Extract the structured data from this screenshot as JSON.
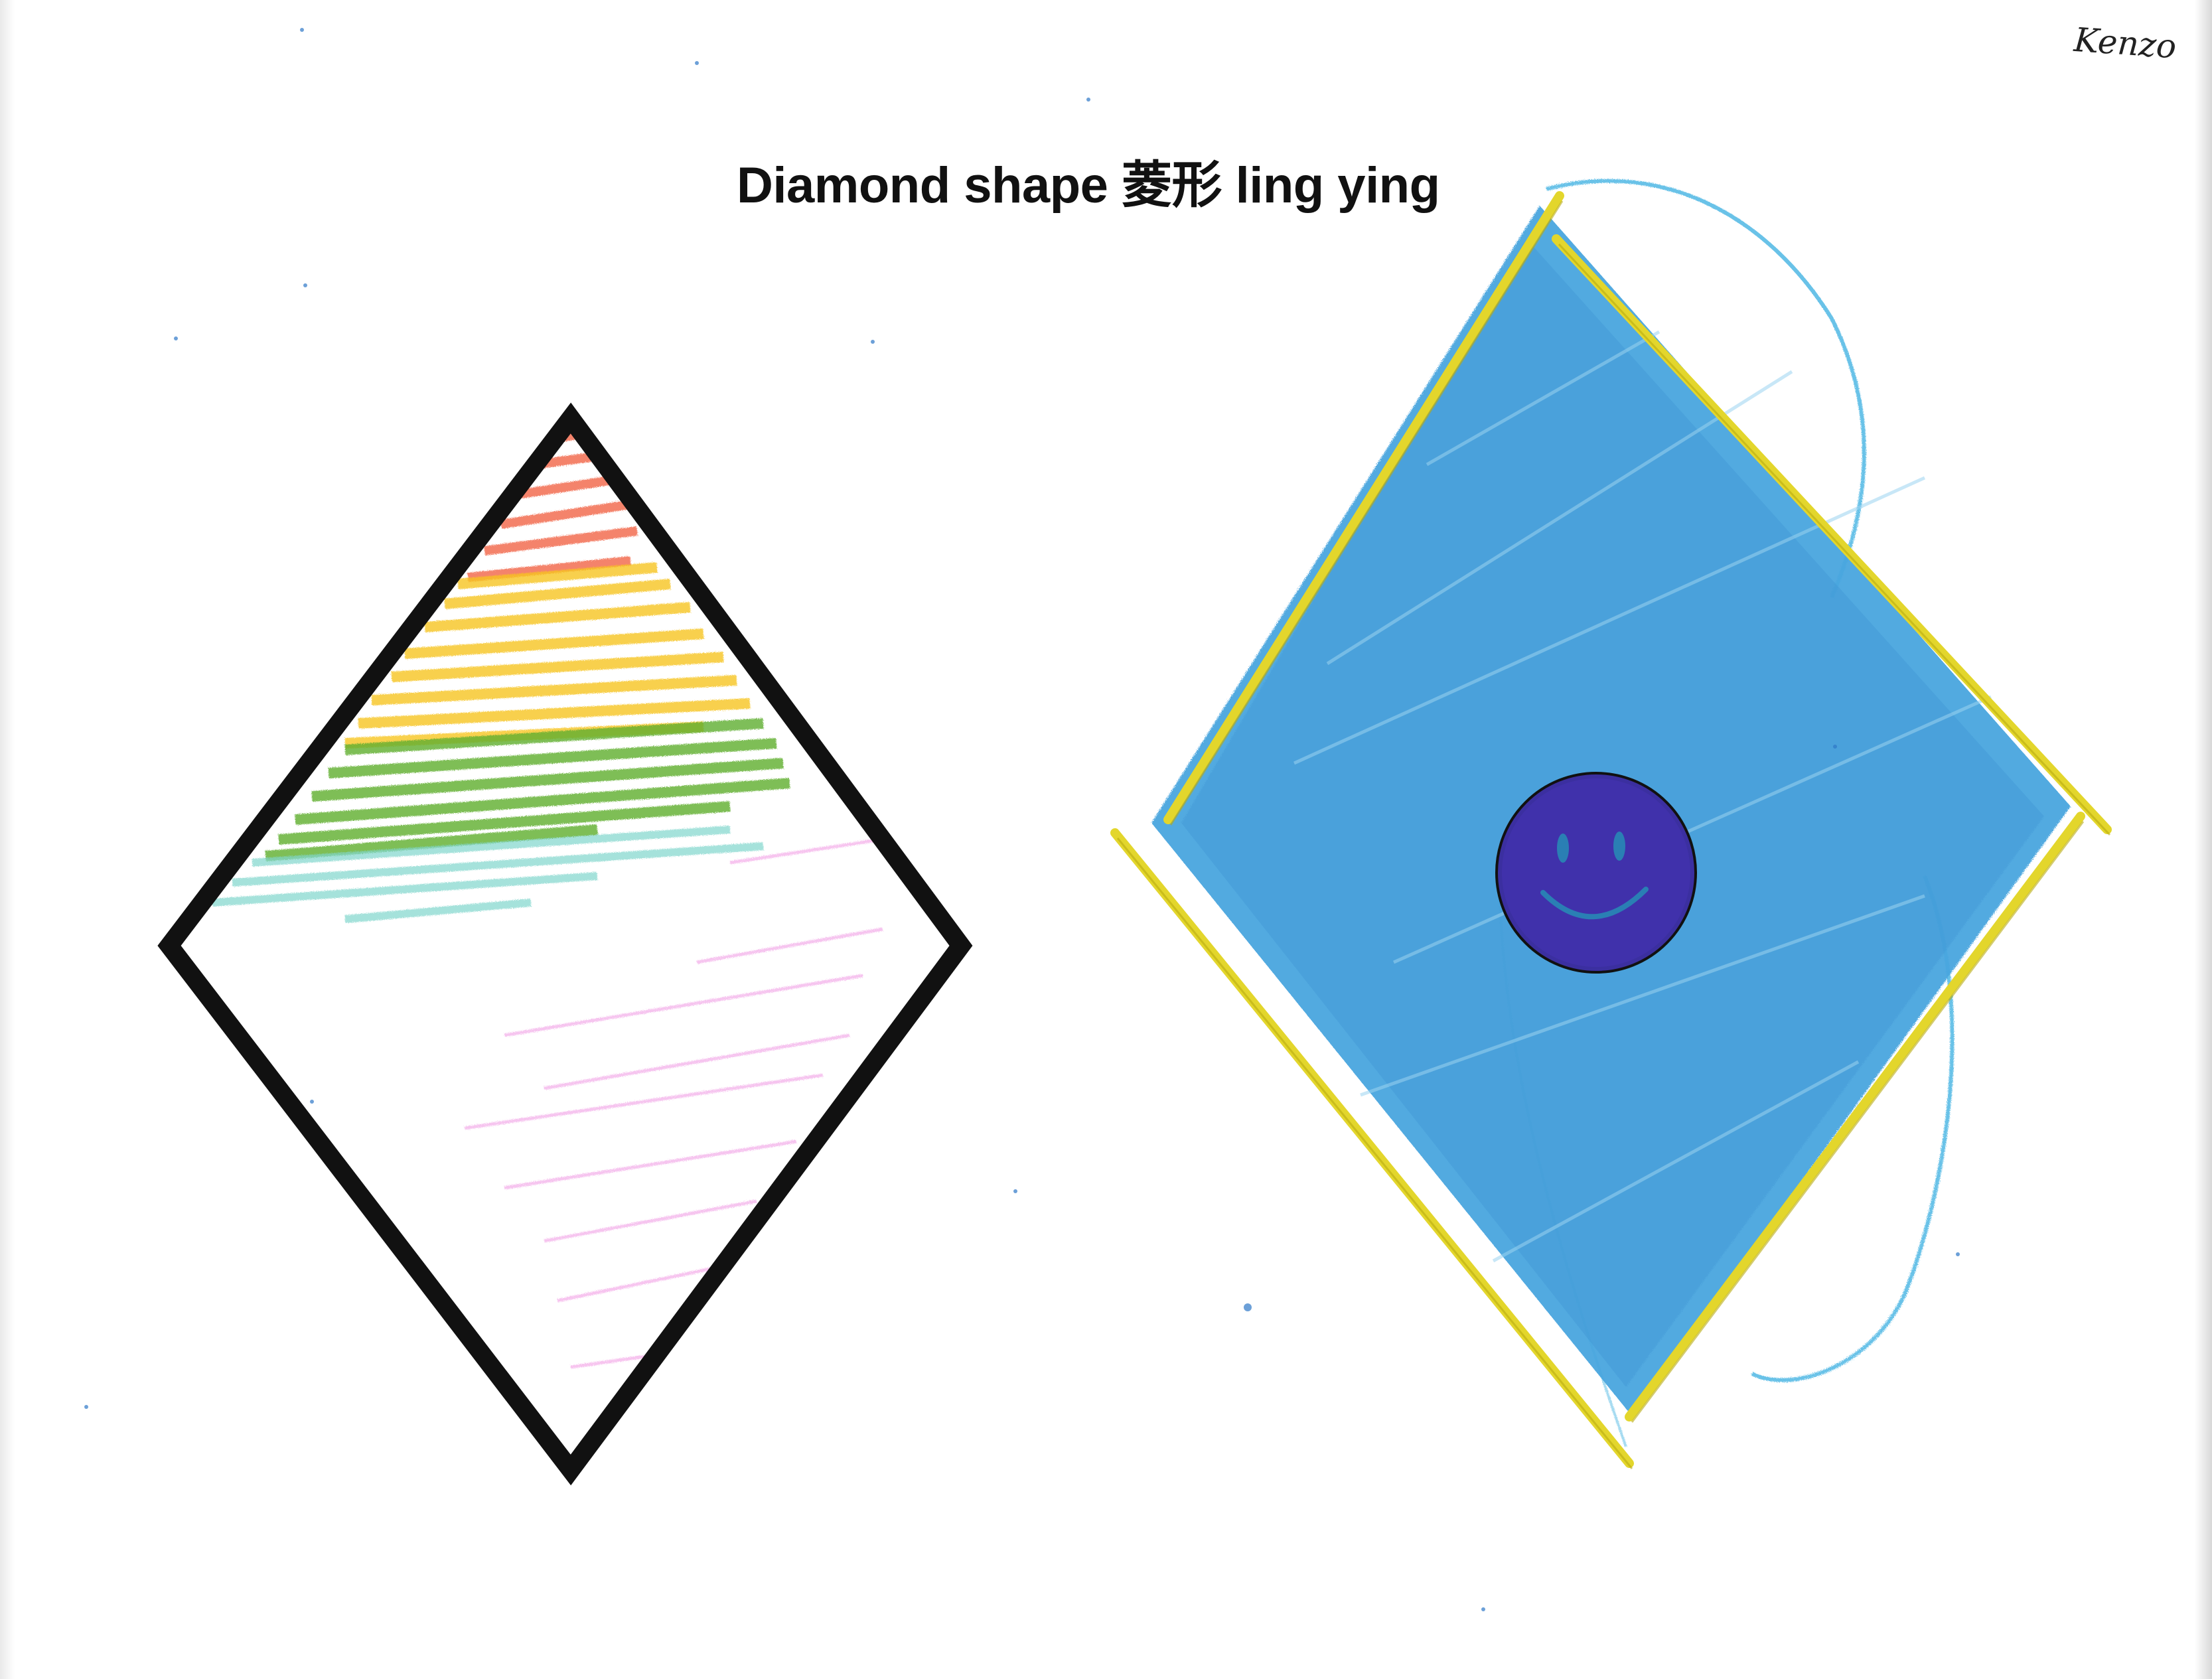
{
  "worksheet": {
    "title": "Diamond shape 菱形 ling ying",
    "signature": "Kenzo"
  },
  "left_drawing": {
    "outline_color": "#111111",
    "crayon_bands": [
      {
        "color": "red",
        "hex": "#f0583a"
      },
      {
        "color": "yellow",
        "hex": "#f7c520"
      },
      {
        "color": "green",
        "hex": "#5fae2e"
      },
      {
        "color": "aqua",
        "hex": "#7fd6cc"
      },
      {
        "color": "pink",
        "hex": "#f2a5e6"
      }
    ]
  },
  "right_drawing": {
    "fill_color": "#4aa6df",
    "frame_color": "#e3d62c",
    "sticker": {
      "type": "smiley-face",
      "color": "#3b2fa0"
    }
  }
}
